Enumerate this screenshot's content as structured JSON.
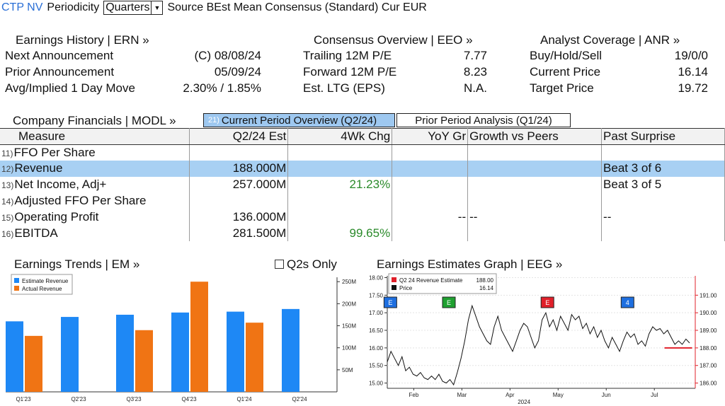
{
  "header": {
    "ticker": "CTP NV",
    "periodicity_label": "Periodicity",
    "periodicity_value": "Quarters",
    "source_text": "Source BEst Mean Consensus (Standard) Cur EUR"
  },
  "earnings_history": {
    "title": "Earnings History | ERN »",
    "rows": [
      {
        "label": "Next Announcement",
        "value": "(C)  08/08/24"
      },
      {
        "label": "Prior Announcement",
        "value": "05/09/24"
      },
      {
        "label": "Avg/Implied 1 Day Move",
        "value": "2.30% / 1.85%"
      }
    ]
  },
  "consensus_overview": {
    "title": "Consensus Overview | EEO »",
    "rows": [
      {
        "label": "Trailing 12M P/E",
        "value": "7.77"
      },
      {
        "label": "Forward 12M P/E",
        "value": "8.23"
      },
      {
        "label": "Est. LTG (EPS)",
        "value": "N.A."
      }
    ]
  },
  "analyst_coverage": {
    "title": "Analyst Coverage | ANR »",
    "rows": [
      {
        "label": "Buy/Hold/Sell",
        "value": "19/0/0"
      },
      {
        "label": "Current Price",
        "value": "16.14"
      },
      {
        "label": "Target Price",
        "value": "19.72"
      }
    ]
  },
  "financials": {
    "title": "Company Financials | MODL »",
    "tab_current_num": "21)",
    "tab_current": "Current Period Overview (Q2/24)",
    "tab_prior": "Prior Period Analysis (Q1/24)",
    "columns": [
      "Measure",
      "Q2/24 Est",
      "4Wk Chg",
      "YoY Gr",
      "Growth vs Peers",
      "Past Surprise"
    ],
    "rows": [
      {
        "num": "11)",
        "measure": "FFO Per Share",
        "est": "",
        "chg": "",
        "yoy": "",
        "peers": "",
        "surprise": ""
      },
      {
        "num": "12)",
        "measure": "Revenue",
        "est": "188.000M",
        "chg": "",
        "yoy": "",
        "peers": "",
        "surprise": "Beat 3 of 6"
      },
      {
        "num": "13)",
        "measure": "Net Income, Adj+",
        "est": "257.000M",
        "chg": "21.23%",
        "yoy": "",
        "peers": "",
        "surprise": "Beat 3 of 5"
      },
      {
        "num": "14)",
        "measure": "Adjusted FFO Per Share",
        "est": "",
        "chg": "",
        "yoy": "",
        "peers": "",
        "surprise": ""
      },
      {
        "num": "15)",
        "measure": "Operating Profit",
        "est": "136.000M",
        "chg": "",
        "yoy": "--",
        "peers": "--",
        "surprise": "--"
      },
      {
        "num": "16)",
        "measure": "EBITDA",
        "est": "281.500M",
        "chg": "99.65%",
        "yoy": "",
        "peers": "",
        "surprise": ""
      }
    ]
  },
  "earnings_trends": {
    "title": "Earnings Trends | EM »",
    "q2s_only_label": "Q2s Only"
  },
  "earnings_estimates": {
    "title": "Earnings Estimates Graph | EEG »"
  },
  "colors": {
    "estimate": "#1e88f5",
    "actual": "#f07414",
    "accent": "#2a6fd6",
    "red": "#e0202a"
  },
  "chart_data": [
    {
      "type": "bar",
      "categories": [
        "Q1'23",
        "Q2'23",
        "Q3'23",
        "Q4'23",
        "Q1'24",
        "Q2'24"
      ],
      "series": [
        {
          "name": "Estimate Revenue",
          "values": [
            160,
            170,
            175,
            180,
            182,
            188
          ]
        },
        {
          "name": "Actual Revenue",
          "values": [
            127,
            null,
            140,
            250,
            157,
            null
          ]
        }
      ],
      "ylim": [
        0,
        260
      ],
      "yticks": [
        50,
        100,
        150,
        200,
        250
      ],
      "ytick_labels": [
        "50M",
        "100M",
        "150M",
        "200M",
        "250M"
      ],
      "legend": "top-left"
    },
    {
      "type": "line",
      "legend_entries": [
        {
          "label": "Q2 24 Revenue Estimate",
          "value": "188.00"
        },
        {
          "label": "Price",
          "value": "16.14"
        }
      ],
      "x_ticks": [
        "Feb",
        "Mar",
        "Apr",
        "May",
        "Jun",
        "Jul"
      ],
      "x_year": "2024",
      "left_ylim": [
        14.85,
        18.05
      ],
      "left_ticks": [
        "15.00",
        "15.50",
        "16.00",
        "16.50",
        "17.00",
        "17.50",
        "18.00"
      ],
      "right_ylim": [
        185.7,
        192.1
      ],
      "right_ticks": [
        "186.00",
        "187.00",
        "188.00",
        "189.00",
        "190.00",
        "191.00"
      ],
      "price": [
        15.6,
        15.9,
        15.7,
        15.5,
        15.75,
        15.35,
        15.45,
        15.25,
        15.2,
        15.3,
        15.15,
        15.1,
        15.2,
        15.1,
        15.25,
        15.05,
        15.0,
        15.1,
        14.95,
        15.3,
        15.7,
        16.2,
        16.8,
        17.2,
        16.9,
        16.6,
        16.4,
        16.2,
        16.1,
        16.6,
        16.9,
        16.5,
        16.3,
        16.1,
        15.9,
        16.2,
        16.5,
        16.7,
        16.6,
        16.3,
        16.0,
        16.2,
        16.8,
        17.0,
        16.6,
        16.8,
        16.5,
        16.9,
        16.7,
        16.5,
        16.95,
        16.8,
        16.9,
        16.55,
        16.7,
        16.4,
        16.6,
        16.3,
        16.5,
        16.2,
        16.0,
        16.3,
        16.1,
        15.9,
        16.2,
        16.45,
        16.3,
        16.4,
        16.1,
        16.2,
        16.05,
        16.4,
        16.6,
        16.5,
        16.55,
        16.4,
        16.5,
        16.3,
        16.1,
        16.2,
        16.1,
        16.25,
        16.14
      ],
      "estimate_segment": {
        "value": 188.0,
        "x_start_frac": 0.9,
        "x_end_frac": 0.99
      },
      "markers": [
        {
          "label": "E",
          "x_frac": 0.01,
          "color": "#1e6fe0"
        },
        {
          "label": "E",
          "x_frac": 0.2,
          "color": "#1fa030"
        },
        {
          "label": "E",
          "x_frac": 0.52,
          "color": "#e0202a"
        },
        {
          "label": "4",
          "x_frac": 0.78,
          "color": "#1e6fe0"
        }
      ]
    }
  ]
}
